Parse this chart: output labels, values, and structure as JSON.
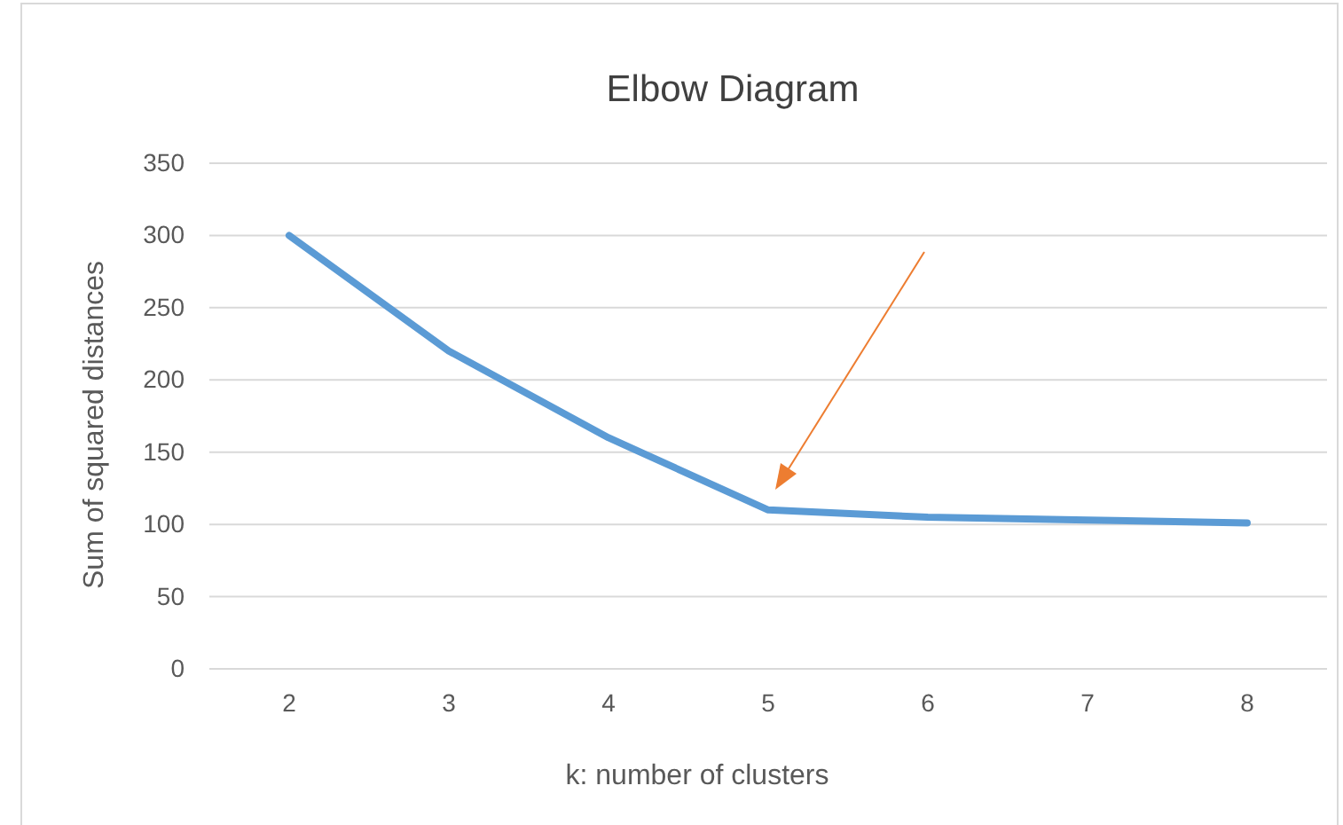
{
  "chart_data": {
    "type": "line",
    "title": "Elbow Diagram",
    "xlabel": "k: number of clusters",
    "ylabel": "Sum of squared distances",
    "categories": [
      "2",
      "3",
      "4",
      "5",
      "6",
      "7",
      "8"
    ],
    "series": [
      {
        "color": "#5b9bd5",
        "values": [
          300,
          220,
          160,
          110,
          105,
          103,
          101
        ]
      }
    ],
    "ylim": [
      0,
      350
    ],
    "yticks": [
      0,
      50,
      100,
      150,
      200,
      250,
      300,
      350
    ],
    "grid": "y",
    "marker": "none",
    "line_style": "solid"
  }
}
